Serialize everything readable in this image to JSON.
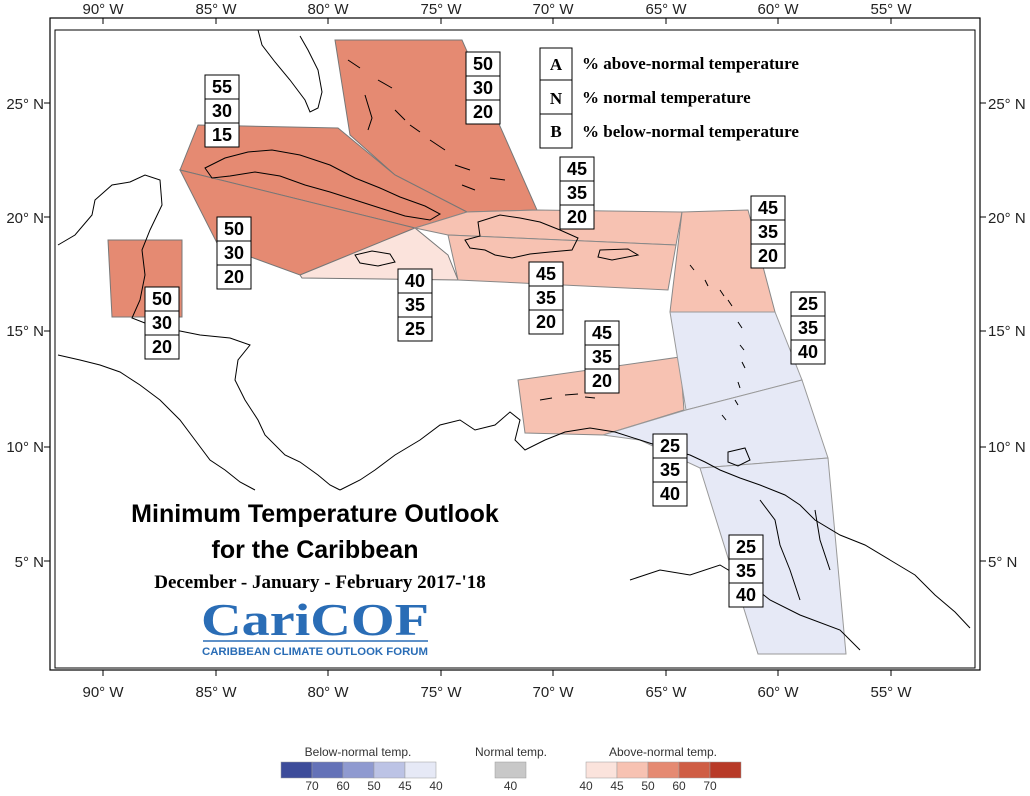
{
  "map": {
    "title": "Minimum Temperature Outlook",
    "title_line2": "for the Caribbean",
    "subtitle": "December - January - February 2017-'18",
    "logo_text": "CariCOF",
    "logo_subtext": "CARIBBEAN CLIMATE OUTLOOK FORUM",
    "x_ticks": [
      "90° W",
      "85° W",
      "80° W",
      "75° W",
      "70° W",
      "65° W",
      "60° W",
      "55° W"
    ],
    "y_ticks": [
      "25° N",
      "20° N",
      "15° N",
      "10° N",
      "5° N"
    ],
    "key": [
      {
        "letter": "A",
        "text": "% above-normal temperature"
      },
      {
        "letter": "N",
        "text": "% normal temperature"
      },
      {
        "letter": "B",
        "text": "% below-normal temperature"
      }
    ],
    "regions": [
      {
        "name": "bahamas",
        "category": "above",
        "level": 50,
        "color": "#e58a72",
        "probabilities": [
          50,
          30,
          20
        ]
      },
      {
        "name": "cuba",
        "category": "above",
        "level": 55,
        "color": "#e58a72",
        "probabilities": [
          55,
          30,
          15
        ]
      },
      {
        "name": "cuba-south",
        "category": "above",
        "level": 50,
        "color": "#e58a72",
        "probabilities": [
          50,
          30,
          20
        ]
      },
      {
        "name": "belize",
        "category": "above",
        "level": 50,
        "color": "#e58a72",
        "probabilities": [
          50,
          30,
          20
        ]
      },
      {
        "name": "jamaica",
        "category": "above",
        "level": 40,
        "color": "#fbe3dc",
        "probabilities": [
          40,
          35,
          25
        ]
      },
      {
        "name": "hispaniola-north",
        "category": "above",
        "level": 45,
        "color": "#f7c2b2",
        "probabilities": [
          45,
          35,
          20
        ]
      },
      {
        "name": "hispaniola-south",
        "category": "above",
        "level": 45,
        "color": "#f7c2b2",
        "probabilities": [
          45,
          35,
          20
        ]
      },
      {
        "name": "leeward-islands",
        "category": "above",
        "level": 45,
        "color": "#f7c2b2",
        "probabilities": [
          45,
          35,
          20
        ]
      },
      {
        "name": "abc-islands",
        "category": "above",
        "level": 45,
        "color": "#f7c2b2",
        "probabilities": [
          45,
          35,
          20
        ]
      },
      {
        "name": "windward-islands",
        "category": "below",
        "level": 40,
        "color": "#e6e9f6",
        "probabilities": [
          25,
          35,
          40
        ]
      },
      {
        "name": "trinidad",
        "category": "below",
        "level": 40,
        "color": "#e6e9f6",
        "probabilities": [
          25,
          35,
          40
        ]
      },
      {
        "name": "guianas",
        "category": "below",
        "level": 40,
        "color": "#e6e9f6",
        "probabilities": [
          25,
          35,
          40
        ]
      }
    ],
    "colorbar": {
      "below_label": "Below-normal temp.",
      "normal_label": "Normal temp.",
      "above_label": "Above-normal temp.",
      "below_values": [
        "70",
        "60",
        "50",
        "45",
        "40"
      ],
      "normal_values": [
        "40"
      ],
      "above_values": [
        "40",
        "45",
        "50",
        "60",
        "70"
      ],
      "below_colors": [
        "#3d4c9a",
        "#6472b8",
        "#8f9ad0",
        "#bcc3e5",
        "#e6e9f6"
      ],
      "normal_colors": [
        "#c8c8c8"
      ],
      "above_colors": [
        "#fbe3dc",
        "#f7c2b2",
        "#e58a72",
        "#cf5d44",
        "#b83a28"
      ]
    }
  }
}
